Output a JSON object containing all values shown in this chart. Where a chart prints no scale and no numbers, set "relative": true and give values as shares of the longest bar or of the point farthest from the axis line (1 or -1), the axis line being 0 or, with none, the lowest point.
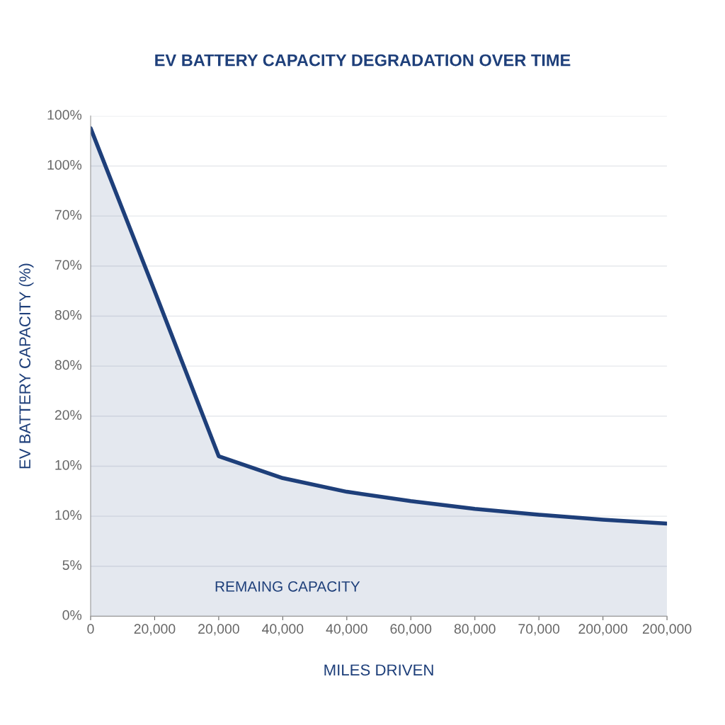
{
  "chart_data": {
    "type": "area",
    "title": "EV BATTERY CAPACITY DEGRADATION OVER TIME",
    "xlabel": "MILES DRIVEN",
    "ylabel": "EV BATTERY CAPACITY (%)",
    "categories": [
      "0",
      "20,000",
      "20,000",
      "40,000",
      "40,000",
      "60,000",
      "80,000",
      "70,000",
      "200,000",
      "200,000"
    ],
    "relative": true,
    "series": [
      {
        "color": "#1e3f7a",
        "values": [
          1,
          0.666,
          0.328,
          0.283,
          0.255,
          0.236,
          0.22,
          0.208,
          0.198,
          0.19
        ]
      }
    ],
    "annotations": [
      "REMAING CAPACITY",
      "0%",
      "5%",
      "10%",
      "10%",
      "20%",
      "80%",
      "80%",
      "70%",
      "70%",
      "100%",
      "100%"
    ],
    "grid": "y",
    "marker": "none",
    "line_style": "solid"
  }
}
